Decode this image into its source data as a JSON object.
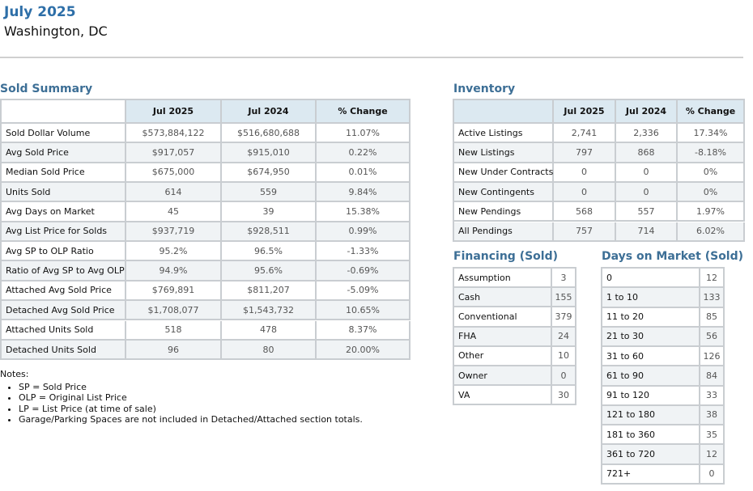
{
  "header": {
    "title": "July 2025",
    "subtitle": "Washington, DC"
  },
  "sold_summary": {
    "title": "Sold Summary",
    "columns": [
      "Jul 2025",
      "Jul 2024",
      "% Change"
    ],
    "rows": [
      [
        "Sold Dollar Volume",
        "$573,884,122",
        "$516,680,688",
        "11.07%"
      ],
      [
        "Avg Sold Price",
        "$917,057",
        "$915,010",
        "0.22%"
      ],
      [
        "Median Sold Price",
        "$675,000",
        "$674,950",
        "0.01%"
      ],
      [
        "Units Sold",
        "614",
        "559",
        "9.84%"
      ],
      [
        "Avg Days on Market",
        "45",
        "39",
        "15.38%"
      ],
      [
        "Avg List Price for Solds",
        "$937,719",
        "$928,511",
        "0.99%"
      ],
      [
        "Avg SP to OLP Ratio",
        "95.2%",
        "96.5%",
        "-1.33%"
      ],
      [
        "Ratio of Avg SP to Avg OLP",
        "94.9%",
        "95.6%",
        "-0.69%"
      ],
      [
        "Attached Avg Sold Price",
        "$769,891",
        "$811,207",
        "-5.09%"
      ],
      [
        "Detached Avg Sold Price",
        "$1,708,077",
        "$1,543,732",
        "10.65%"
      ],
      [
        "Attached Units Sold",
        "518",
        "478",
        "8.37%"
      ],
      [
        "Detached Units Sold",
        "96",
        "80",
        "20.00%"
      ]
    ]
  },
  "inventory": {
    "title": "Inventory",
    "columns": [
      "Jul 2025",
      "Jul 2024",
      "% Change"
    ],
    "rows": [
      [
        "Active Listings",
        "2,741",
        "2,336",
        "17.34%"
      ],
      [
        "New Listings",
        "797",
        "868",
        "-8.18%"
      ],
      [
        "New Under Contracts",
        "0",
        "0",
        "0%"
      ],
      [
        "New Contingents",
        "0",
        "0",
        "0%"
      ],
      [
        "New Pendings",
        "568",
        "557",
        "1.97%"
      ],
      [
        "All Pendings",
        "757",
        "714",
        "6.02%"
      ]
    ]
  },
  "financing": {
    "title": "Financing (Sold)",
    "rows": [
      [
        "Assumption",
        "3"
      ],
      [
        "Cash",
        "155"
      ],
      [
        "Conventional",
        "379"
      ],
      [
        "FHA",
        "24"
      ],
      [
        "Other",
        "10"
      ],
      [
        "Owner",
        "0"
      ],
      [
        "VA",
        "30"
      ]
    ]
  },
  "days_on_market": {
    "title": "Days on Market (Sold)",
    "rows": [
      [
        "0",
        "12"
      ],
      [
        "1 to 10",
        "133"
      ],
      [
        "11 to 20",
        "85"
      ],
      [
        "21 to 30",
        "56"
      ],
      [
        "31 to 60",
        "126"
      ],
      [
        "61 to 90",
        "84"
      ],
      [
        "91 to 120",
        "33"
      ],
      [
        "121 to 180",
        "38"
      ],
      [
        "181 to 360",
        "35"
      ],
      [
        "361 to 720",
        "12"
      ],
      [
        "721+",
        "0"
      ]
    ]
  },
  "notes": {
    "title": "Notes:",
    "items": [
      "SP = Sold Price",
      "OLP = Original List Price",
      "LP = List Price (at time of sale)",
      "Garage/Parking Spaces are not included in Detached/Attached section totals."
    ]
  }
}
